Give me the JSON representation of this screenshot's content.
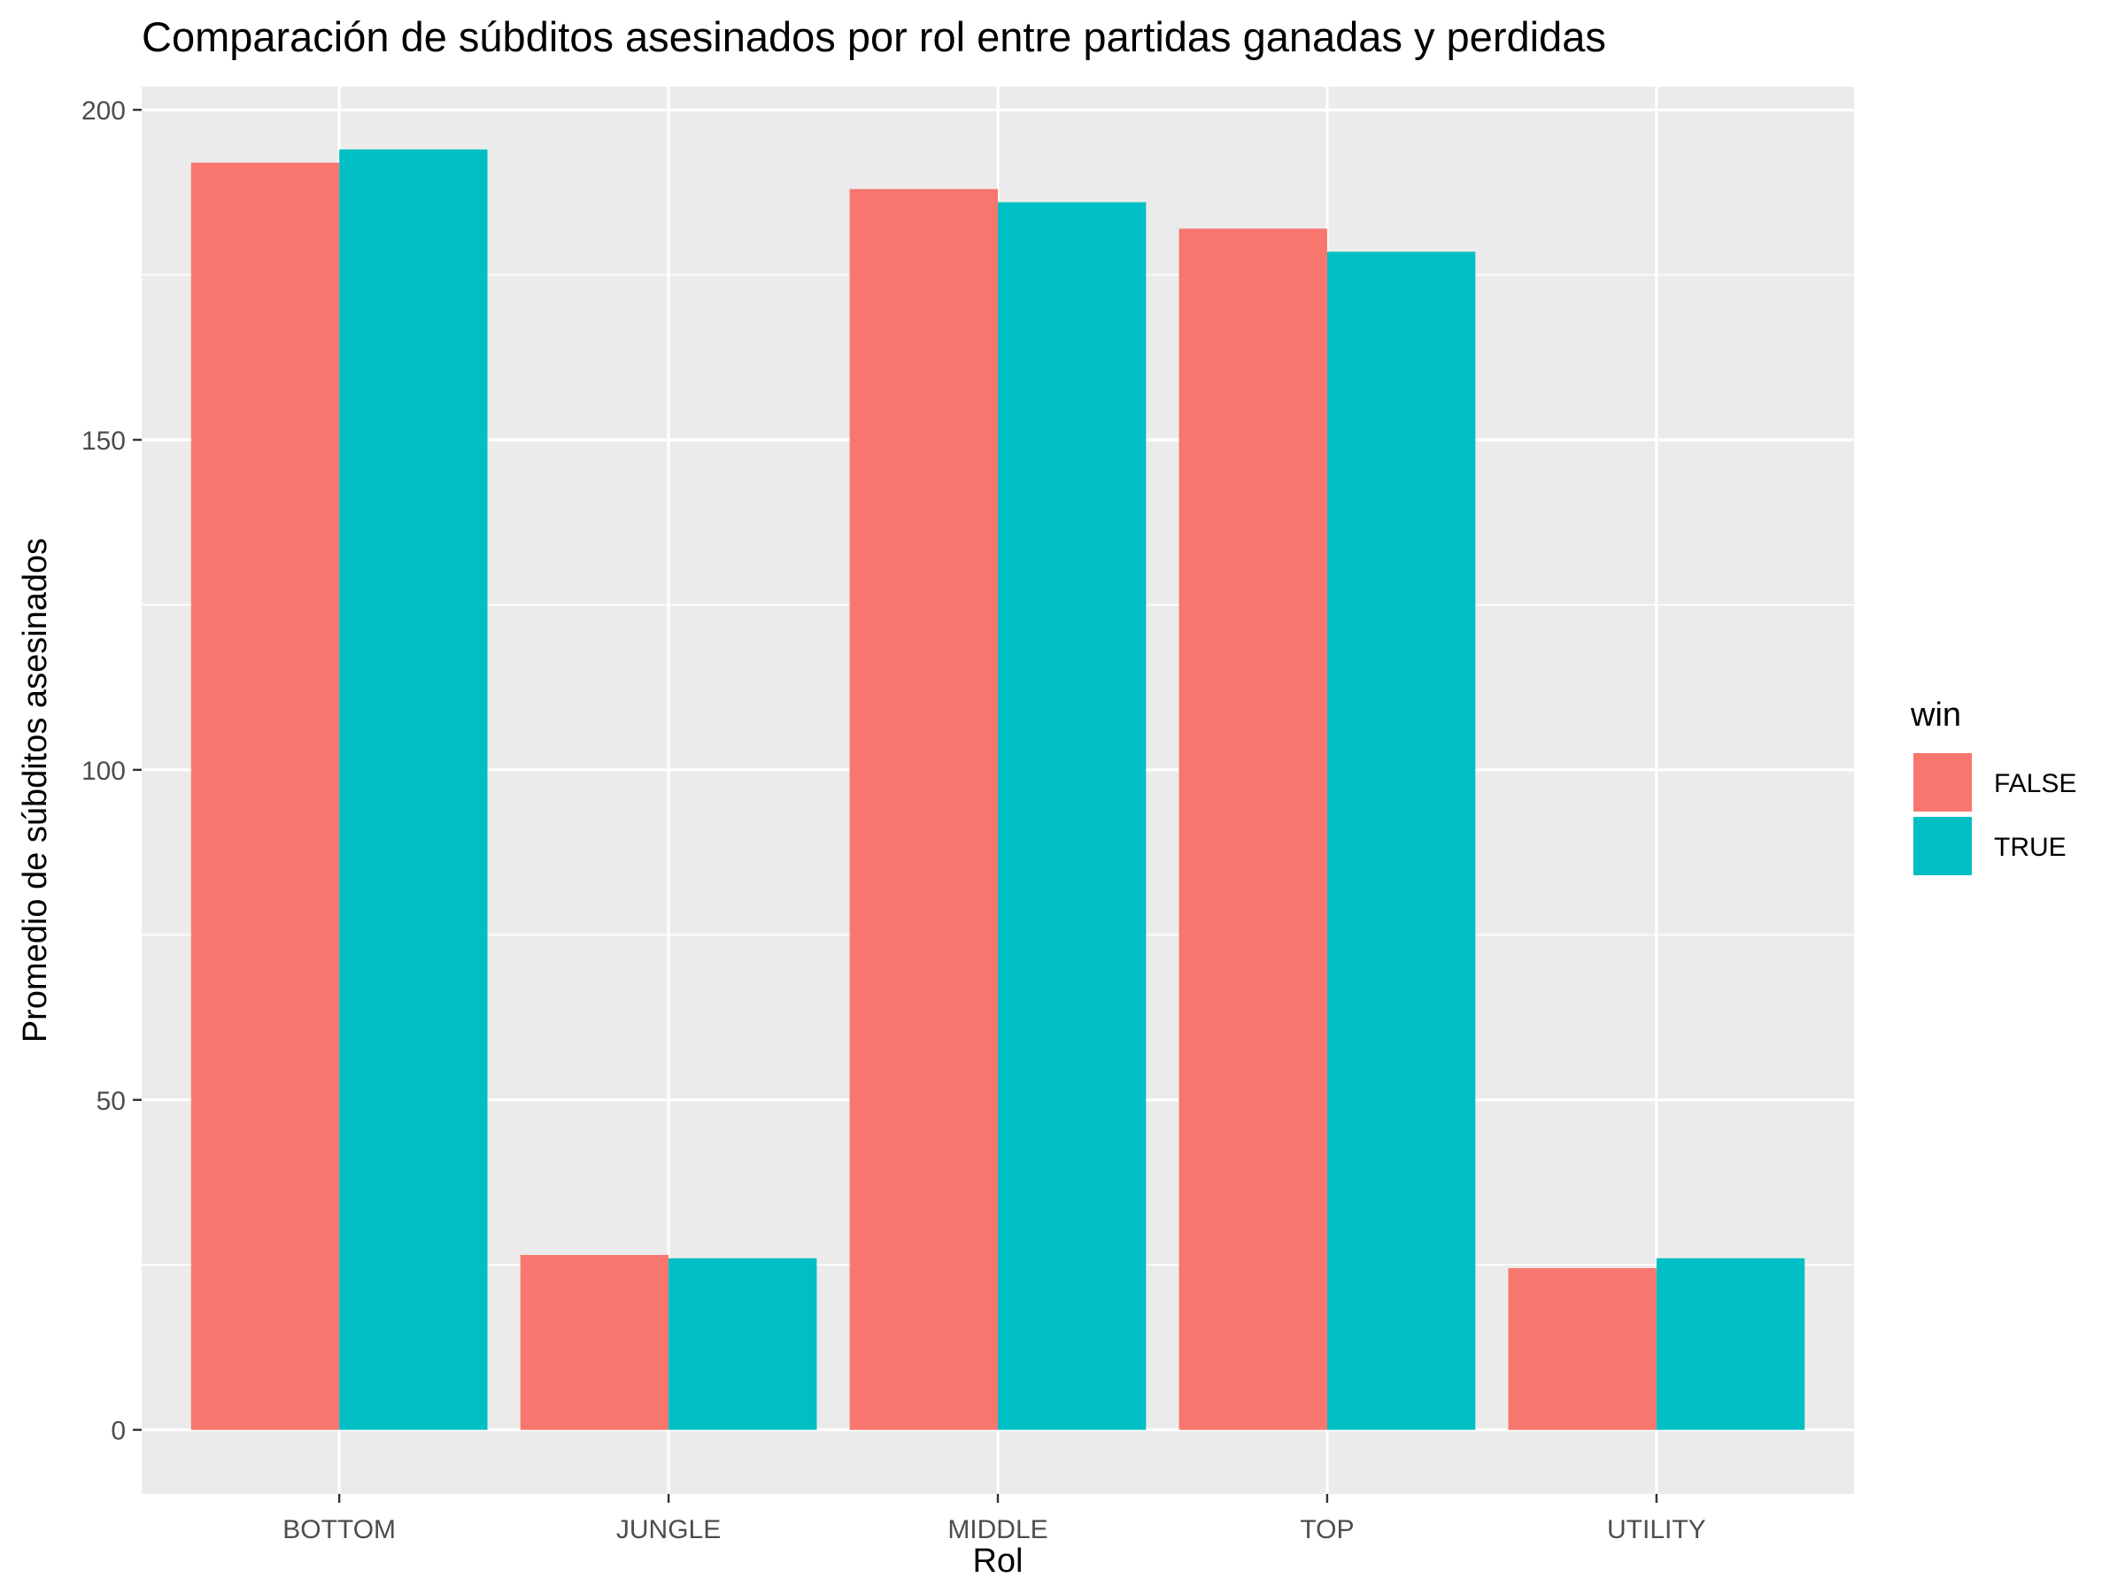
{
  "chart_data": {
    "type": "bar",
    "title": "Comparación de súbditos asesinados por rol entre partidas ganadas y perdidas",
    "xlabel": "Rol",
    "ylabel": "Promedio de súbditos asesinados",
    "categories": [
      "BOTTOM",
      "JUNGLE",
      "MIDDLE",
      "TOP",
      "UTILITY"
    ],
    "series": [
      {
        "name": "FALSE",
        "color": "#F8766D",
        "values": [
          192,
          26.5,
          188,
          182,
          24.5
        ]
      },
      {
        "name": "TRUE",
        "color": "#00BFC4",
        "values": [
          194,
          26,
          186,
          178.5,
          26
        ]
      }
    ],
    "ylim": [
      -9.7,
      203.5
    ],
    "yticks": [
      0,
      50,
      100,
      150,
      200
    ],
    "grid": true,
    "panel_background": "#EBEBEB",
    "legend": {
      "title": "win",
      "placement": "right"
    }
  }
}
